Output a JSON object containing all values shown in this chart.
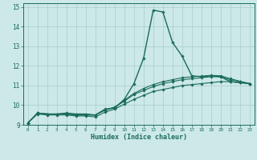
{
  "xlabel": "Humidex (Indice chaleur)",
  "xlim": [
    -0.5,
    23.5
  ],
  "ylim": [
    9,
    15.2
  ],
  "yticks": [
    9,
    10,
    11,
    12,
    13,
    14,
    15
  ],
  "xticks": [
    0,
    1,
    2,
    3,
    4,
    5,
    6,
    7,
    8,
    9,
    10,
    11,
    12,
    13,
    14,
    15,
    16,
    17,
    18,
    19,
    20,
    21,
    22,
    23
  ],
  "background_color": "#cce8e8",
  "grid_color": "#aacccc",
  "line_color": "#1a6b5a",
  "line1_x": [
    0,
    1,
    2,
    3,
    4,
    5,
    6,
    7,
    8,
    9,
    10,
    11,
    12,
    13,
    14,
    15,
    16,
    17,
    18,
    19,
    20,
    21,
    22,
    23
  ],
  "line1_y": [
    9.1,
    9.6,
    9.55,
    9.55,
    9.6,
    9.55,
    9.55,
    9.5,
    9.8,
    9.85,
    10.3,
    11.1,
    12.4,
    14.85,
    14.75,
    13.2,
    12.5,
    11.5,
    11.45,
    11.5,
    11.45,
    11.2,
    11.15,
    11.1
  ],
  "line2_x": [
    0,
    1,
    2,
    3,
    4,
    5,
    6,
    7,
    8,
    9,
    10,
    11,
    12,
    13,
    14,
    15,
    16,
    17,
    18,
    19,
    20,
    21,
    22,
    23
  ],
  "line2_y": [
    9.1,
    9.55,
    9.5,
    9.5,
    9.5,
    9.45,
    9.45,
    9.4,
    9.65,
    9.8,
    10.05,
    10.3,
    10.5,
    10.7,
    10.8,
    10.9,
    11.0,
    11.05,
    11.1,
    11.15,
    11.2,
    11.2,
    11.15,
    11.1
  ],
  "line3_x": [
    0,
    1,
    2,
    3,
    4,
    5,
    6,
    7,
    8,
    9,
    10,
    11,
    12,
    13,
    14,
    15,
    16,
    17,
    18,
    19,
    20,
    21,
    22,
    23
  ],
  "line3_y": [
    9.1,
    9.6,
    9.55,
    9.55,
    9.55,
    9.5,
    9.5,
    9.5,
    9.75,
    9.9,
    10.2,
    10.55,
    10.75,
    10.95,
    11.1,
    11.2,
    11.3,
    11.35,
    11.4,
    11.45,
    11.45,
    11.3,
    11.2,
    11.1
  ],
  "line4_x": [
    0,
    1,
    2,
    3,
    4,
    5,
    6,
    7,
    8,
    9,
    10,
    11,
    12,
    13,
    14,
    15,
    16,
    17,
    18,
    19,
    20,
    21,
    22,
    23
  ],
  "line4_y": [
    9.1,
    9.6,
    9.55,
    9.55,
    9.55,
    9.5,
    9.5,
    9.5,
    9.75,
    9.9,
    10.25,
    10.6,
    10.85,
    11.05,
    11.2,
    11.3,
    11.4,
    11.45,
    11.48,
    11.52,
    11.5,
    11.35,
    11.22,
    11.1
  ]
}
